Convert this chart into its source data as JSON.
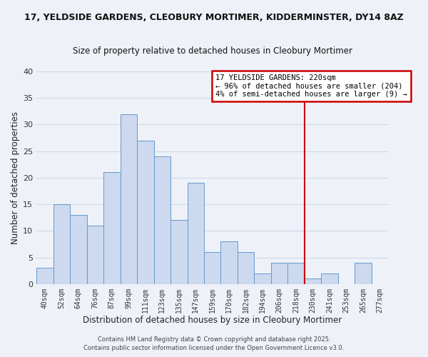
{
  "title": "17, YELDSIDE GARDENS, CLEOBURY MORTIMER, KIDDERMINSTER, DY14 8AZ",
  "subtitle": "Size of property relative to detached houses in Cleobury Mortimer",
  "xlabel": "Distribution of detached houses by size in Cleobury Mortimer",
  "ylabel": "Number of detached properties",
  "bar_labels": [
    "40sqm",
    "52sqm",
    "64sqm",
    "76sqm",
    "87sqm",
    "99sqm",
    "111sqm",
    "123sqm",
    "135sqm",
    "147sqm",
    "159sqm",
    "170sqm",
    "182sqm",
    "194sqm",
    "206sqm",
    "218sqm",
    "230sqm",
    "241sqm",
    "253sqm",
    "265sqm",
    "277sqm"
  ],
  "bar_heights": [
    3,
    15,
    13,
    11,
    21,
    32,
    27,
    24,
    12,
    19,
    6,
    8,
    6,
    2,
    4,
    4,
    1,
    2,
    0,
    4,
    0
  ],
  "bar_color": "#ccd9ee",
  "bar_edge_color": "#6699cc",
  "grid_color": "#d0d8e8",
  "vline_x_idx": 15,
  "vline_color": "#cc0000",
  "annotation_title": "17 YELDSIDE GARDENS: 220sqm",
  "annotation_line1": "← 96% of detached houses are smaller (204)",
  "annotation_line2": "4% of semi-detached houses are larger (9) →",
  "annotation_box_color": "#ffffff",
  "annotation_border_color": "#cc0000",
  "footer1": "Contains HM Land Registry data © Crown copyright and database right 2025.",
  "footer2": "Contains public sector information licensed under the Open Government Licence v3.0.",
  "ylim": [
    0,
    40
  ],
  "bg_color": "#eef2f8",
  "title_color": "#111111",
  "axis_label_color": "#222222",
  "tick_label_color": "#333333"
}
